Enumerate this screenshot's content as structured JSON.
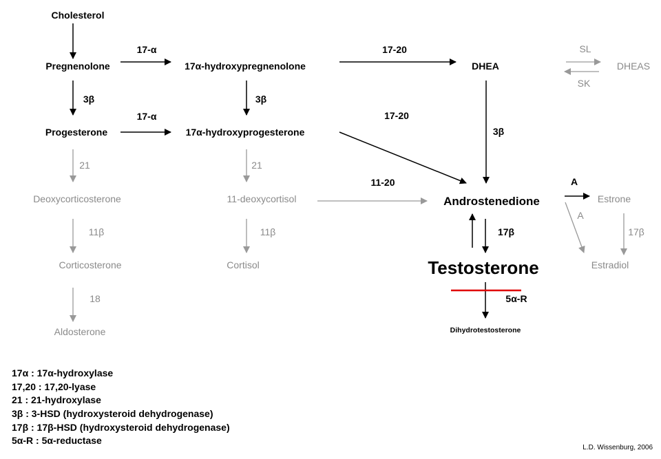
{
  "nodes": {
    "cholesterol": "Cholesterol",
    "pregnenolone": "Pregnenolone",
    "hydroxypregnenolone": "17α-hydroxypregnenolone",
    "dhea": "DHEA",
    "dheas": "DHEAS",
    "progesterone": "Progesterone",
    "hydroxyprogesterone": "17α-hydroxyprogesterone",
    "deoxycorticosterone": "Deoxycorticosterone",
    "deoxycortisol": "11-deoxycortisol",
    "androstenedione": "Androstenedione",
    "estrone": "Estrone",
    "corticosterone": "Corticosterone",
    "cortisol": "Cortisol",
    "testosterone": "Testosterone",
    "estradiol": "Estradiol",
    "aldosterone": "Aldosterone",
    "dihydrotestosterone": "Dihydrotestosterone"
  },
  "enzymes": {
    "preg_to_ohpreg": "17-α",
    "ohpreg_to_dhea": "17-20",
    "sl": "SL",
    "sk": "SK",
    "preg_to_prog": "3β",
    "ohpreg_to_ohprog": "3β",
    "prog_to_ohprog": "17-α",
    "ohprog_to_andro": "17-20",
    "dhea_to_andro": "3β",
    "prog_to_doc": "21",
    "ohprog_to_dc": "21",
    "dc_to_andro": "11-20",
    "doc_to_cort": "11β",
    "dc_to_cortisol": "11β",
    "cort_to_aldo": "18",
    "andro_to_estrone": "A",
    "andro_to_estradiol": "A",
    "estrone_to_estradiol": "17β",
    "andro_to_test": "17β",
    "test_to_dht": "5α-R"
  },
  "legend": [
    "17α : 17α-hydroxylase",
    "17,20 : 17,20-lyase",
    "21 : 21-hydroxylase",
    "3β : 3-HSD (hydroxysteroid dehydrogenase)",
    "17β : 17β-HSD (hydroxysteroid dehydrogenase)",
    "5α-R : 5α-reductase"
  ],
  "credit": "L.D. Wissenburg, 2006",
  "colors": {
    "primary": "#000000",
    "secondary": "#8a8a8a",
    "inhibition": "#e00000"
  }
}
